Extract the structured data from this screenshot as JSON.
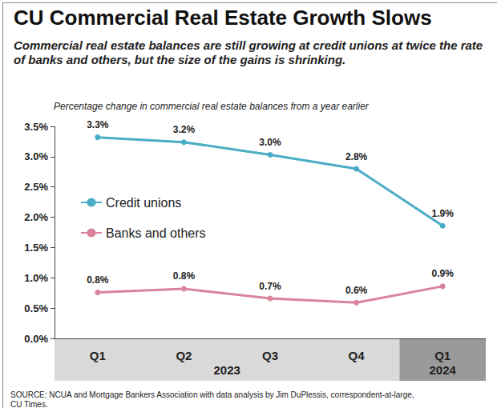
{
  "chart_data": {
    "type": "line",
    "title": "CU Commercial Real Estate Growth Slows",
    "subtitle": "Commercial real estate balances are still growing at credit unions at twice the rate of banks and others, but the size of the gains is shrinking.",
    "y_label": "Percentage change in commercial real estate balances from a year earlier",
    "source": "SOURCE: NCUA and Mortgage Bankers Association with data analysis by Jim DuPlessis, correspondent-at-large, CU Times.",
    "categories": [
      "Q1",
      "Q2",
      "Q3",
      "Q4",
      "Q1"
    ],
    "category_groups": [
      "2023",
      "2023",
      "2023",
      "2023",
      "2024"
    ],
    "series": [
      {
        "name": "Credit unions",
        "color": "#4bacc6",
        "marker": "circle",
        "line_style": "solid",
        "values": [
          3.32,
          3.24,
          3.03,
          2.8,
          1.86
        ],
        "value_labels": [
          "3.3%",
          "3.2%",
          "3.0%",
          "2.8%",
          "1.9%"
        ]
      },
      {
        "name": "Banks and others",
        "color": "#d9849b",
        "marker": "circle",
        "line_style": "solid",
        "values": [
          0.76,
          0.82,
          0.66,
          0.59,
          0.86
        ],
        "value_labels": [
          "0.8%",
          "0.8%",
          "0.7%",
          "0.6%",
          "0.9%"
        ]
      }
    ],
    "ylim": [
      0,
      3.5
    ],
    "yticks": [
      {
        "value": 0,
        "label": "0.0%"
      },
      {
        "value": 0.5,
        "label": "0.5%"
      },
      {
        "value": 1,
        "label": "1.0%"
      },
      {
        "value": 1.5,
        "label": "1.5%"
      },
      {
        "value": 2,
        "label": "2.0%"
      },
      {
        "value": 2.5,
        "label": "2.5%"
      },
      {
        "value": 3,
        "label": "3.0%"
      },
      {
        "value": 3.5,
        "label": "3.5%"
      }
    ],
    "grid": false,
    "legend": "upper left",
    "data_labels": true
  }
}
